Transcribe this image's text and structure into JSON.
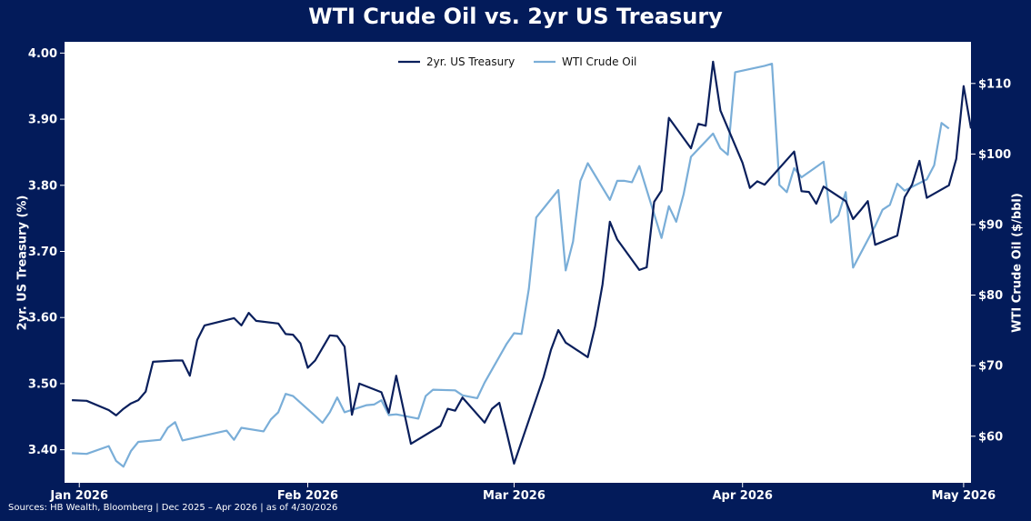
{
  "title": "WTI Crude Oil vs. 2yr US Treasury",
  "sources": "Sources: HB Wealth, Bloomberg | Dec 2025 – Apr 2026 | as of 4/30/2026",
  "colors": {
    "background": "#031b5a",
    "plot_bg": "#ffffff",
    "treasury": "#0a1f5c",
    "oil": "#7aaed8"
  },
  "chart_data": {
    "type": "line",
    "ylabel_left": "2yr. US Treasury (%)",
    "ylabel_right": "WTI Crude Oil ($/bbl)",
    "xlim": [
      "2025-12-30",
      "2026-05-02"
    ],
    "ylim_left": [
      3.35,
      4.017
    ],
    "ylim_right": [
      53.4,
      115.9
    ],
    "x_ticks": [
      {
        "date": "2026-01-01",
        "label": "Jan 2026"
      },
      {
        "date": "2026-02-01",
        "label": "Feb 2026"
      },
      {
        "date": "2026-03-01",
        "label": "Mar 2026"
      },
      {
        "date": "2026-04-01",
        "label": "Apr 2026"
      },
      {
        "date": "2026-05-01",
        "label": "May 2026"
      }
    ],
    "y_ticks_left": [
      {
        "value": 3.4,
        "label": "3.40"
      },
      {
        "value": 3.5,
        "label": "3.50"
      },
      {
        "value": 3.6,
        "label": "3.60"
      },
      {
        "value": 3.7,
        "label": "3.70"
      },
      {
        "value": 3.8,
        "label": "3.80"
      },
      {
        "value": 3.9,
        "label": "3.90"
      },
      {
        "value": 4.0,
        "label": "4.00"
      }
    ],
    "y_ticks_right": [
      {
        "value": 60,
        "label": "$60"
      },
      {
        "value": 70,
        "label": "$70"
      },
      {
        "value": 80,
        "label": "$80"
      },
      {
        "value": 90,
        "label": "$90"
      },
      {
        "value": 100,
        "label": "$100"
      },
      {
        "value": 110,
        "label": "$110"
      }
    ],
    "legend_position": "top-center",
    "grid": false,
    "series": [
      {
        "name": "2yr. US Treasury",
        "axis": "left",
        "color": "#0a1f5c",
        "points": [
          [
            "2025-12-31",
            3.475
          ],
          [
            "2026-01-02",
            3.474
          ],
          [
            "2026-01-05",
            3.46
          ],
          [
            "2026-01-06",
            3.452
          ],
          [
            "2026-01-07",
            3.462
          ],
          [
            "2026-01-08",
            3.47
          ],
          [
            "2026-01-09",
            3.475
          ],
          [
            "2026-01-10",
            3.488
          ],
          [
            "2026-01-11",
            3.533
          ],
          [
            "2026-01-14",
            3.535
          ],
          [
            "2026-01-15",
            3.535
          ],
          [
            "2026-01-16",
            3.512
          ],
          [
            "2026-01-17",
            3.566
          ],
          [
            "2026-01-18",
            3.588
          ],
          [
            "2026-01-22",
            3.599
          ],
          [
            "2026-01-23",
            3.588
          ],
          [
            "2026-01-24",
            3.607
          ],
          [
            "2026-01-25",
            3.595
          ],
          [
            "2026-01-28",
            3.591
          ],
          [
            "2026-01-29",
            3.575
          ],
          [
            "2026-01-30",
            3.574
          ],
          [
            "2026-01-31",
            3.561
          ],
          [
            "2026-02-01",
            3.524
          ],
          [
            "2026-02-02",
            3.535
          ],
          [
            "2026-02-04",
            3.573
          ],
          [
            "2026-02-05",
            3.572
          ],
          [
            "2026-02-06",
            3.556
          ],
          [
            "2026-02-07",
            3.453
          ],
          [
            "2026-02-08",
            3.5
          ],
          [
            "2026-02-11",
            3.487
          ],
          [
            "2026-02-12",
            3.456
          ],
          [
            "2026-02-13",
            3.512
          ],
          [
            "2026-02-15",
            3.409
          ],
          [
            "2026-02-19",
            3.436
          ],
          [
            "2026-02-20",
            3.462
          ],
          [
            "2026-02-21",
            3.459
          ],
          [
            "2026-02-22",
            3.479
          ],
          [
            "2026-02-25",
            3.441
          ],
          [
            "2026-02-26",
            3.462
          ],
          [
            "2026-02-27",
            3.471
          ],
          [
            "2026-02-28",
            3.426
          ],
          [
            "2026-03-01",
            3.379
          ],
          [
            "2026-03-05",
            3.51
          ],
          [
            "2026-03-06",
            3.551
          ],
          [
            "2026-03-07",
            3.581
          ],
          [
            "2026-03-08",
            3.562
          ],
          [
            "2026-03-11",
            3.54
          ],
          [
            "2026-03-12",
            3.587
          ],
          [
            "2026-03-13",
            3.65
          ],
          [
            "2026-03-14",
            3.745
          ],
          [
            "2026-03-15",
            3.718
          ],
          [
            "2026-03-18",
            3.672
          ],
          [
            "2026-03-19",
            3.676
          ],
          [
            "2026-03-20",
            3.775
          ],
          [
            "2026-03-21",
            3.792
          ],
          [
            "2026-03-22",
            3.902
          ],
          [
            "2026-03-25",
            3.856
          ],
          [
            "2026-03-26",
            3.893
          ],
          [
            "2026-03-27",
            3.89
          ],
          [
            "2026-03-28",
            3.987
          ],
          [
            "2026-03-29",
            3.913
          ],
          [
            "2026-04-01",
            3.834
          ],
          [
            "2026-04-02",
            3.796
          ],
          [
            "2026-04-03",
            3.806
          ],
          [
            "2026-04-04",
            3.801
          ],
          [
            "2026-04-08",
            3.851
          ],
          [
            "2026-04-09",
            3.791
          ],
          [
            "2026-04-10",
            3.79
          ],
          [
            "2026-04-11",
            3.772
          ],
          [
            "2026-04-12",
            3.798
          ],
          [
            "2026-04-15",
            3.776
          ],
          [
            "2026-04-16",
            3.749
          ],
          [
            "2026-04-17",
            3.762
          ],
          [
            "2026-04-18",
            3.776
          ],
          [
            "2026-04-19",
            3.71
          ],
          [
            "2026-04-22",
            3.724
          ],
          [
            "2026-04-23",
            3.782
          ],
          [
            "2026-04-24",
            3.801
          ],
          [
            "2026-04-25",
            3.837
          ],
          [
            "2026-04-26",
            3.781
          ],
          [
            "2026-04-29",
            3.8
          ],
          [
            "2026-04-30",
            3.84
          ],
          [
            "2026-05-01",
            3.95
          ],
          [
            "2026-05-02",
            3.886
          ]
        ]
      },
      {
        "name": "WTI Crude Oil",
        "axis": "right",
        "color": "#7aaed8",
        "points": [
          [
            "2025-12-31",
            57.6
          ],
          [
            "2026-01-02",
            57.5
          ],
          [
            "2026-01-05",
            58.6
          ],
          [
            "2026-01-06",
            56.5
          ],
          [
            "2026-01-07",
            55.7
          ],
          [
            "2026-01-08",
            57.9
          ],
          [
            "2026-01-09",
            59.2
          ],
          [
            "2026-01-12",
            59.5
          ],
          [
            "2026-01-13",
            61.2
          ],
          [
            "2026-01-14",
            62.0
          ],
          [
            "2026-01-15",
            59.4
          ],
          [
            "2026-01-21",
            60.8
          ],
          [
            "2026-01-22",
            59.5
          ],
          [
            "2026-01-23",
            61.2
          ],
          [
            "2026-01-26",
            60.7
          ],
          [
            "2026-01-27",
            62.4
          ],
          [
            "2026-01-28",
            63.4
          ],
          [
            "2026-01-29",
            66.0
          ],
          [
            "2026-01-30",
            65.7
          ],
          [
            "2026-02-02",
            62.9
          ],
          [
            "2026-02-03",
            61.9
          ],
          [
            "2026-02-04",
            63.4
          ],
          [
            "2026-02-05",
            65.5
          ],
          [
            "2026-02-06",
            63.4
          ],
          [
            "2026-02-09",
            64.4
          ],
          [
            "2026-02-10",
            64.5
          ],
          [
            "2026-02-11",
            65.1
          ],
          [
            "2026-02-12",
            63.0
          ],
          [
            "2026-02-13",
            63.1
          ],
          [
            "2026-02-16",
            62.5
          ],
          [
            "2026-02-17",
            65.7
          ],
          [
            "2026-02-18",
            66.6
          ],
          [
            "2026-02-21",
            66.5
          ],
          [
            "2026-02-22",
            65.8
          ],
          [
            "2026-02-24",
            65.4
          ],
          [
            "2026-02-25",
            67.6
          ],
          [
            "2026-02-28",
            73.1
          ],
          [
            "2026-03-01",
            74.6
          ],
          [
            "2026-03-02",
            74.5
          ],
          [
            "2026-03-03",
            80.9
          ],
          [
            "2026-03-04",
            91.0
          ],
          [
            "2026-03-07",
            94.9
          ],
          [
            "2026-03-08",
            83.5
          ],
          [
            "2026-03-09",
            87.6
          ],
          [
            "2026-03-10",
            96.2
          ],
          [
            "2026-03-11",
            98.7
          ],
          [
            "2026-03-14",
            93.5
          ],
          [
            "2026-03-15",
            96.2
          ],
          [
            "2026-03-16",
            96.2
          ],
          [
            "2026-03-17",
            96.0
          ],
          [
            "2026-03-18",
            98.3
          ],
          [
            "2026-03-21",
            88.1
          ],
          [
            "2026-03-22",
            92.6
          ],
          [
            "2026-03-23",
            90.4
          ],
          [
            "2026-03-24",
            94.3
          ],
          [
            "2026-03-25",
            99.6
          ],
          [
            "2026-03-28",
            102.9
          ],
          [
            "2026-03-29",
            100.8
          ],
          [
            "2026-03-30",
            99.9
          ],
          [
            "2026-03-31",
            111.6
          ],
          [
            "2026-04-04",
            112.5
          ],
          [
            "2026-04-05",
            112.8
          ],
          [
            "2026-04-06",
            95.6
          ],
          [
            "2026-04-07",
            94.6
          ],
          [
            "2026-04-08",
            98.0
          ],
          [
            "2026-04-09",
            96.7
          ],
          [
            "2026-04-12",
            98.9
          ],
          [
            "2026-04-13",
            90.3
          ],
          [
            "2026-04-14",
            91.3
          ],
          [
            "2026-04-15",
            94.6
          ],
          [
            "2026-04-16",
            83.9
          ],
          [
            "2026-04-19",
            89.8
          ],
          [
            "2026-04-20",
            92.1
          ],
          [
            "2026-04-21",
            92.8
          ],
          [
            "2026-04-22",
            95.8
          ],
          [
            "2026-04-23",
            94.8
          ],
          [
            "2026-04-26",
            96.4
          ],
          [
            "2026-04-27",
            98.4
          ],
          [
            "2026-04-28",
            104.4
          ],
          [
            "2026-04-29",
            103.6
          ]
        ]
      }
    ]
  }
}
